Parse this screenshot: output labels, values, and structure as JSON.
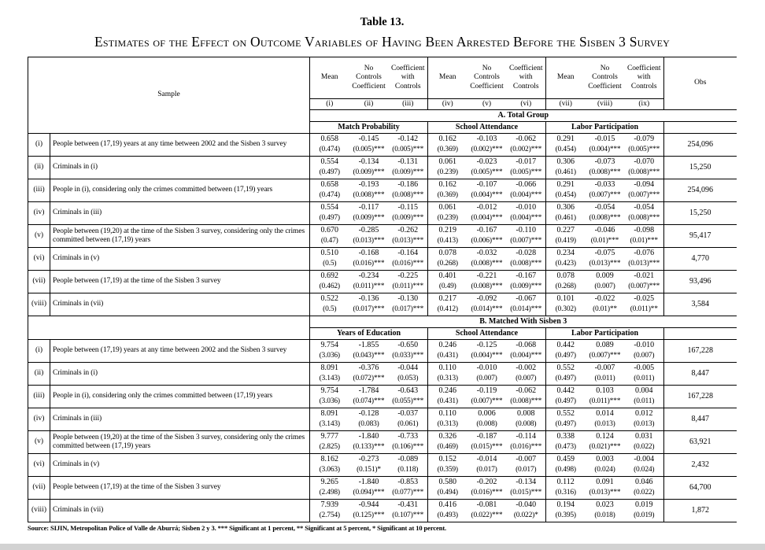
{
  "page": {
    "title": "Table 13.",
    "subtitle": "Estimates of the Effect on Outcome Variables of Having Been Arrested Before the Sisben 3 Survey",
    "source_note": "Source: SIJIN, Metropolitan Police of Valle de Aburrá; Sisben 2 y 3. *** Significant at 1 percent, ** Significant at 5 percent, * Significant at 10 percent."
  },
  "table": {
    "header": {
      "sample_label": "Sample",
      "obs_label": "Obs",
      "measure_labels": [
        "Mean",
        "No\nControls\nCoefficient",
        "Coefficient\nwith\nControls"
      ],
      "column_numbers": [
        "(i)",
        "(ii)",
        "(iii)",
        "(iv)",
        "(v)",
        "(vi)",
        "(vii)",
        "(viii)",
        "(ix)"
      ]
    },
    "panels": [
      {
        "label": "A. Total Group",
        "outcomes": [
          "Match Probability",
          "School Attendance",
          "Labor Participation"
        ],
        "rows": [
          {
            "num": "(i)",
            "sample": "People between (17,19) years at any time between 2002 and the Sisben 3 survey",
            "estimates": [
              "0.658",
              "-0.145",
              "-0.142",
              "0.162",
              "-0.103",
              "-0.062",
              "0.291",
              "-0.015",
              "-0.079"
            ],
            "std_errors": [
              "(0.474)",
              "(0.005)***",
              "(0.005)***",
              "(0.369)",
              "(0.002)***",
              "(0.002)***",
              "(0.454)",
              "(0.004)***",
              "(0.005)***"
            ],
            "obs": "254,096"
          },
          {
            "num": "(ii)",
            "sample": "Criminals in (i)",
            "estimates": [
              "0.554",
              "-0.134",
              "-0.131",
              "0.061",
              "-0.023",
              "-0.017",
              "0.306",
              "-0.073",
              "-0.070"
            ],
            "std_errors": [
              "(0.497)",
              "(0.009)***",
              "(0.009)***",
              "(0.239)",
              "(0.005)***",
              "(0.005)***",
              "(0.461)",
              "(0.008)***",
              "(0.008)***"
            ],
            "obs": "15,250"
          },
          {
            "num": "(iii)",
            "sample": "People in (i), considering only the crimes committed between (17,19) years",
            "estimates": [
              "0.658",
              "-0.193",
              "-0.186",
              "0.162",
              "-0.107",
              "-0.066",
              "0.291",
              "-0.033",
              "-0.094"
            ],
            "std_errors": [
              "(0.474)",
              "(0.008)***",
              "(0.008)***",
              "(0.369)",
              "(0.004)***",
              "(0.004)***",
              "(0.454)",
              "(0.007)***",
              "(0.007)***"
            ],
            "obs": "254,096"
          },
          {
            "num": "(iv)",
            "sample": "Criminals in (iii)",
            "estimates": [
              "0.554",
              "-0.117",
              "-0.115",
              "0.061",
              "-0.012",
              "-0.010",
              "0.306",
              "-0.054",
              "-0.054"
            ],
            "std_errors": [
              "(0.497)",
              "(0.009)***",
              "(0.009)***",
              "(0.239)",
              "(0.004)***",
              "(0.004)***",
              "(0.461)",
              "(0.008)***",
              "(0.008)***"
            ],
            "obs": "15,250"
          },
          {
            "num": "(v)",
            "sample": "People between (19,20) at the time of the Sisben 3 survey, considering only the crimes committed between (17,19) years",
            "estimates": [
              "0.670",
              "-0.285",
              "-0.262",
              "0.219",
              "-0.167",
              "-0.110",
              "0.227",
              "-0.046",
              "-0.098"
            ],
            "std_errors": [
              "(0.47)",
              "(0.013)***",
              "(0.013)***",
              "(0.413)",
              "(0.006)***",
              "(0.007)***",
              "(0.419)",
              "(0.01)***",
              "(0.01)***"
            ],
            "obs": "95,417"
          },
          {
            "num": "(vi)",
            "sample": "Criminals in (v)",
            "estimates": [
              "0.510",
              "-0.168",
              "-0.164",
              "0.078",
              "-0.032",
              "-0.028",
              "0.234",
              "-0.075",
              "-0.076"
            ],
            "std_errors": [
              "(0.5)",
              "(0.016)***",
              "(0.016)***",
              "(0.268)",
              "(0.008)***",
              "(0.008)***",
              "(0.423)",
              "(0.013)***",
              "(0.013)***"
            ],
            "obs": "4,770"
          },
          {
            "num": "(vii)",
            "sample": "People between (17,19) at the time of the Sisben 3 survey",
            "estimates": [
              "0.692",
              "-0.234",
              "-0.225",
              "0.401",
              "-0.221",
              "-0.167",
              "0.078",
              "0.009",
              "-0.021"
            ],
            "std_errors": [
              "(0.462)",
              "(0.011)***",
              "(0.011)***",
              "(0.49)",
              "(0.008)***",
              "(0.009)***",
              "(0.268)",
              "(0.007)",
              "(0.007)***"
            ],
            "obs": "93,496"
          },
          {
            "num": "(viii)",
            "sample": "Criminals in (vii)",
            "estimates": [
              "0.522",
              "-0.136",
              "-0.130",
              "0.217",
              "-0.092",
              "-0.067",
              "0.101",
              "-0.022",
              "-0.025"
            ],
            "std_errors": [
              "(0.5)",
              "(0.017)***",
              "(0.017)***",
              "(0.412)",
              "(0.014)***",
              "(0.014)***",
              "(0.302)",
              "(0.01)**",
              "(0.011)**"
            ],
            "obs": "3,584"
          }
        ]
      },
      {
        "label": "B. Matched With Sisben 3",
        "outcomes": [
          "Years of Education",
          "School Attendance",
          "Labor Participation"
        ],
        "rows": [
          {
            "num": "(i)",
            "sample": "People between (17,19) years at any time between 2002 and the Sisben 3 survey",
            "estimates": [
              "9.754",
              "-1.855",
              "-0.650",
              "0.246",
              "-0.125",
              "-0.068",
              "0.442",
              "0.089",
              "-0.010"
            ],
            "std_errors": [
              "(3.036)",
              "(0.043)***",
              "(0.033)***",
              "(0.431)",
              "(0.004)***",
              "(0.004)***",
              "(0.497)",
              "(0.007)***",
              "(0.007)"
            ],
            "obs": "167,228"
          },
          {
            "num": "(ii)",
            "sample": "Criminals in (i)",
            "estimates": [
              "8.091",
              "-0.376",
              "-0.044",
              "0.110",
              "-0.010",
              "-0.002",
              "0.552",
              "-0.007",
              "-0.005"
            ],
            "std_errors": [
              "(3.143)",
              "(0.072)***",
              "(0.053)",
              "(0.313)",
              "(0.007)",
              "(0.007)",
              "(0.497)",
              "(0.011)",
              "(0.011)"
            ],
            "obs": "8,447"
          },
          {
            "num": "(iii)",
            "sample": "People in (i), considering only the crimes committed between (17,19) years",
            "estimates": [
              "9.754",
              "-1.784",
              "-0.643",
              "0.246",
              "-0.119",
              "-0.062",
              "0.442",
              "0.103",
              "0.004"
            ],
            "std_errors": [
              "(3.036)",
              "(0.074)***",
              "(0.055)***",
              "(0.431)",
              "(0.007)***",
              "(0.008)***",
              "(0.497)",
              "(0.011)***",
              "(0.011)"
            ],
            "obs": "167,228"
          },
          {
            "num": "(iv)",
            "sample": "Criminals in (iii)",
            "estimates": [
              "8.091",
              "-0.128",
              "-0.037",
              "0.110",
              "0.006",
              "0.008",
              "0.552",
              "0.014",
              "0.012"
            ],
            "std_errors": [
              "(3.143)",
              "(0.083)",
              "(0.061)",
              "(0.313)",
              "(0.008)",
              "(0.008)",
              "(0.497)",
              "(0.013)",
              "(0.013)"
            ],
            "obs": "8,447"
          },
          {
            "num": "(v)",
            "sample": "People between (19,20) at the time of the Sisben 3 survey, considering only the crimes committed between (17,19) years",
            "estimates": [
              "9.777",
              "-1.840",
              "-0.733",
              "0.326",
              "-0.187",
              "-0.114",
              "0.338",
              "0.124",
              "0.031"
            ],
            "std_errors": [
              "(2.825)",
              "(0.133)***",
              "(0.106)***",
              "(0.469)",
              "(0.015)***",
              "(0.016)***",
              "(0.473)",
              "(0.021)***",
              "(0.022)"
            ],
            "obs": "63,921"
          },
          {
            "num": "(vi)",
            "sample": "Criminals in (v)",
            "estimates": [
              "8.162",
              "-0.273",
              "-0.089",
              "0.152",
              "-0.014",
              "-0.007",
              "0.459",
              "0.003",
              "-0.004"
            ],
            "std_errors": [
              "(3.063)",
              "(0.151)*",
              "(0.118)",
              "(0.359)",
              "(0.017)",
              "(0.017)",
              "(0.498)",
              "(0.024)",
              "(0.024)"
            ],
            "obs": "2,432"
          },
          {
            "num": "(vii)",
            "sample": "People between (17,19) at the time of the Sisben 3 survey",
            "estimates": [
              "9.265",
              "-1.840",
              "-0.853",
              "0.580",
              "-0.202",
              "-0.134",
              "0.112",
              "0.091",
              "0.046"
            ],
            "std_errors": [
              "(2.498)",
              "(0.094)***",
              "(0.077)***",
              "(0.494)",
              "(0.016)***",
              "(0.015)***",
              "(0.316)",
              "(0.013)***",
              "(0.022)"
            ],
            "obs": "64,700"
          },
          {
            "num": "(viii)",
            "sample": "Criminals in (vii)",
            "estimates": [
              "7.939",
              "-0.944",
              "-0.431",
              "0.416",
              "-0.081",
              "-0.040",
              "0.194",
              "0.023",
              "0.019"
            ],
            "std_errors": [
              "(2.754)",
              "(0.125)***",
              "(0.107)***",
              "(0.493)",
              "(0.022)***",
              "(0.022)*",
              "(0.395)",
              "(0.018)",
              "(0.019)"
            ],
            "obs": "1,872"
          }
        ]
      }
    ]
  }
}
